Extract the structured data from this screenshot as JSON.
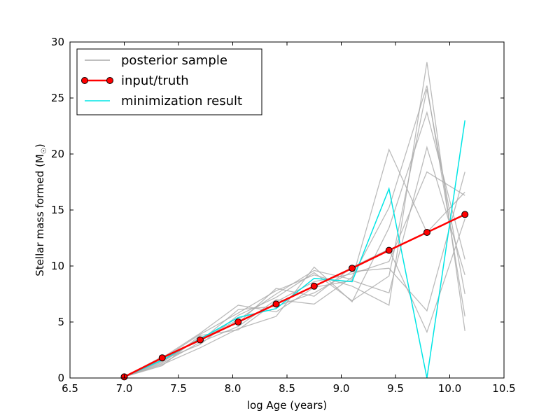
{
  "chart_data": {
    "type": "line",
    "title": "",
    "xlabel": "log Age (years)",
    "ylabel": "Stellar mass formed (M",
    "ylabel_symbol": "☉",
    "ylabel_close": ")",
    "xlim": [
      6.5,
      10.5
    ],
    "ylim": [
      0,
      30
    ],
    "xticks": [
      "6.5",
      "7.0",
      "7.5",
      "8.0",
      "8.5",
      "9.0",
      "9.5",
      "10.0",
      "10.5"
    ],
    "yticks": [
      "0",
      "5",
      "10",
      "15",
      "20",
      "25",
      "30"
    ],
    "grid": false,
    "legend": {
      "placement": "top-left",
      "entries": [
        "posterior sample",
        "input/truth",
        "minimization result"
      ]
    },
    "colors": {
      "posterior": "#aaaaaa",
      "truth": "#ff0000",
      "marker_edge": "#000000",
      "minimization": "#00e5e5"
    },
    "x": [
      7.0,
      7.35,
      7.7,
      8.05,
      8.4,
      8.75,
      9.1,
      9.44,
      9.79,
      10.14
    ],
    "series": [
      {
        "name": "input/truth",
        "role": "truth",
        "values": [
          0.1,
          1.8,
          3.4,
          5.0,
          6.6,
          8.2,
          9.8,
          11.4,
          13.0,
          14.6
        ]
      },
      {
        "name": "minimization result",
        "role": "minimization",
        "values": [
          0.1,
          1.6,
          3.5,
          5.4,
          6.2,
          8.9,
          8.6,
          16.9,
          0.0,
          23.0
        ]
      },
      {
        "name": "posterior sample",
        "role": "posterior",
        "values": [
          0.1,
          1.5,
          3.5,
          5.2,
          7.5,
          9.6,
          8.8,
          20.4,
          13.0,
          16.6
        ]
      },
      {
        "role": "posterior",
        "values": [
          0.1,
          1.3,
          3.2,
          4.6,
          7.0,
          6.6,
          9.0,
          15.2,
          26.1,
          5.5
        ]
      },
      {
        "role": "posterior",
        "values": [
          0.1,
          1.7,
          3.9,
          5.8,
          7.8,
          9.2,
          8.2,
          6.5,
          28.2,
          4.2
        ]
      },
      {
        "role": "posterior",
        "values": [
          0.1,
          1.9,
          3.3,
          6.1,
          6.4,
          7.6,
          9.5,
          9.8,
          6.0,
          18.4
        ]
      },
      {
        "role": "posterior",
        "values": [
          0.1,
          1.2,
          2.7,
          4.4,
          5.5,
          9.9,
          6.8,
          13.4,
          23.7,
          10.6
        ]
      },
      {
        "role": "posterior",
        "values": [
          0.1,
          1.8,
          4.0,
          6.5,
          5.9,
          8.1,
          8.7,
          7.6,
          20.6,
          9.2
        ]
      },
      {
        "role": "posterior",
        "values": [
          0.1,
          1.4,
          3.6,
          4.9,
          8.0,
          7.3,
          9.9,
          11.5,
          4.1,
          14.2
        ]
      },
      {
        "role": "posterior",
        "values": [
          0.1,
          1.6,
          3.0,
          5.6,
          7.2,
          9.4,
          6.9,
          9.1,
          25.8,
          7.5
        ]
      },
      {
        "role": "posterior",
        "values": [
          0.1,
          1.1,
          3.8,
          4.3,
          6.8,
          8.6,
          9.3,
          10.4,
          18.4,
          16.3
        ]
      }
    ]
  }
}
